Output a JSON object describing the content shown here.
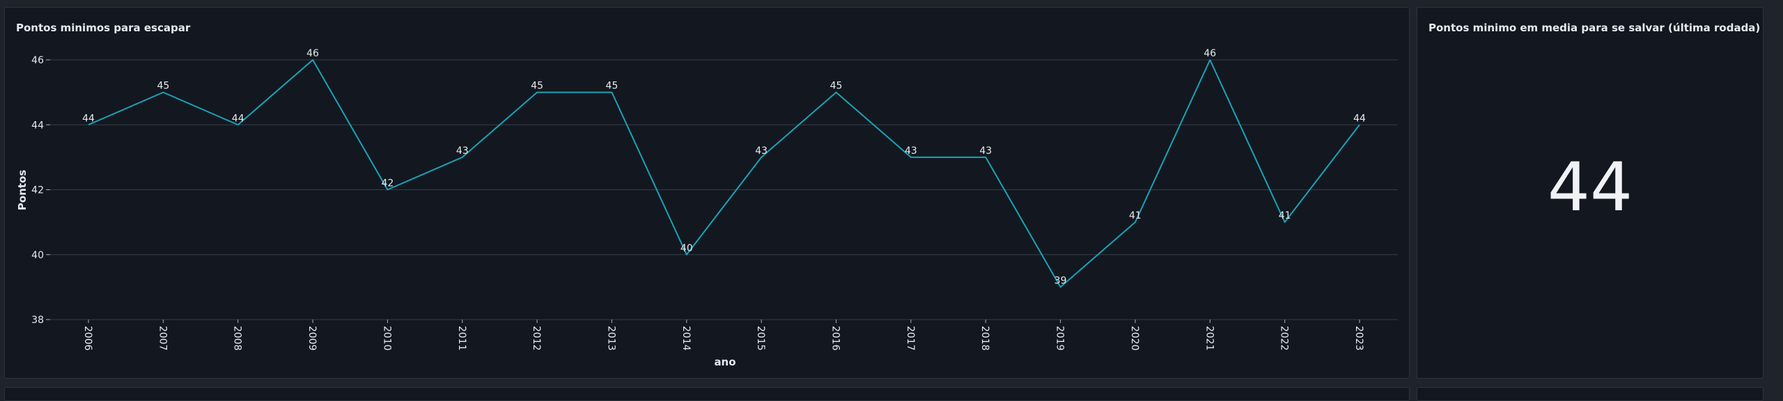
{
  "line_panel": {
    "title": "Pontos minimos para escapar"
  },
  "stat_panel": {
    "title": "Pontos minimo em media para se salvar (última rodada)",
    "value": "44"
  },
  "colors": {
    "background": "#1f242b",
    "panel": "#131820",
    "line": "#1ba3b8",
    "grid": "#363d47",
    "text": "#e6e9ee"
  },
  "chart_data": {
    "type": "line",
    "x": [
      "2006",
      "2007",
      "2008",
      "2009",
      "2010",
      "2011",
      "2012",
      "2013",
      "2014",
      "2015",
      "2016",
      "2017",
      "2018",
      "2019",
      "2020",
      "2021",
      "2022",
      "2023"
    ],
    "series": [
      {
        "values": [
          44,
          45,
          44,
          46,
          42,
          43,
          45,
          45,
          40,
          43,
          45,
          43,
          43,
          39,
          41,
          46,
          41,
          44
        ]
      }
    ],
    "xlabel": "ano",
    "ylabel": "Pontos",
    "yticks": [
      38,
      40,
      42,
      44,
      46
    ],
    "ylim": [
      38,
      46
    ],
    "grid": true,
    "data_labels": true
  }
}
